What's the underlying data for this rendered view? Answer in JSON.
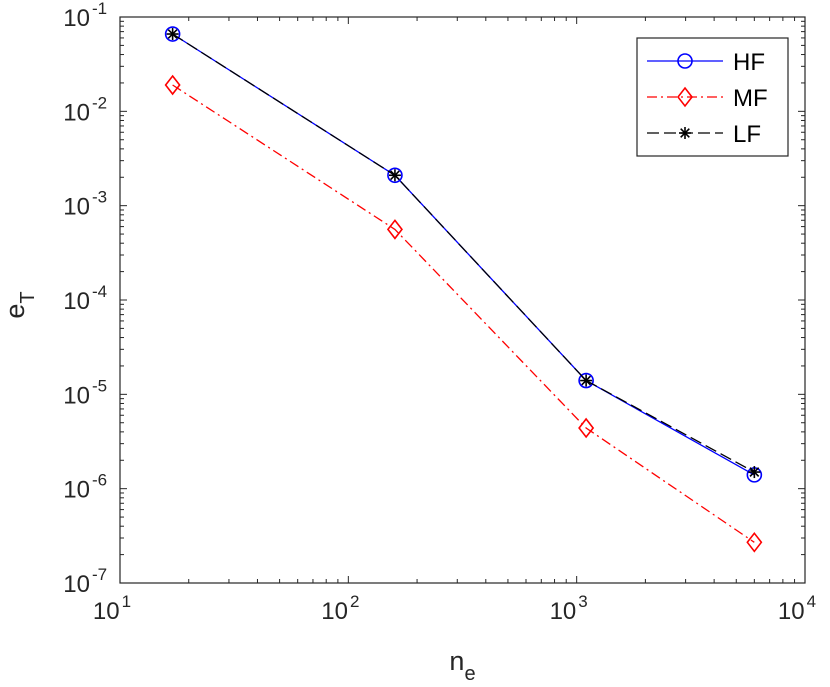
{
  "chart_data": {
    "type": "line",
    "xscale": "log",
    "yscale": "log",
    "xlim": [
      10,
      10000
    ],
    "ylim": [
      1e-07,
      0.1
    ],
    "x_ticks": [
      {
        "base": "10",
        "exp": "1",
        "value": 10
      },
      {
        "base": "10",
        "exp": "2",
        "value": 100
      },
      {
        "base": "10",
        "exp": "3",
        "value": 1000
      },
      {
        "base": "10",
        "exp": "4",
        "value": 10000
      }
    ],
    "y_ticks": [
      {
        "base": "10",
        "exp": "-1",
        "value": 0.1
      },
      {
        "base": "10",
        "exp": "-2",
        "value": 0.01
      },
      {
        "base": "10",
        "exp": "-3",
        "value": 0.001
      },
      {
        "base": "10",
        "exp": "-4",
        "value": 0.0001
      },
      {
        "base": "10",
        "exp": "-5",
        "value": 1e-05
      },
      {
        "base": "10",
        "exp": "-6",
        "value": 1e-06
      },
      {
        "base": "10",
        "exp": "-7",
        "value": 1e-07
      }
    ],
    "xlabel": {
      "main": "n",
      "sub": "e"
    },
    "ylabel": {
      "main": "e",
      "sub": "T"
    },
    "grid": false,
    "legend_position": "top-right",
    "series": [
      {
        "name": "HF",
        "color": "#0000ff",
        "marker": "circle",
        "line_style": "solid",
        "x": [
          17,
          160,
          1100,
          6000
        ],
        "y": [
          0.066,
          0.0021,
          1.4e-05,
          1.4e-06
        ]
      },
      {
        "name": "MF",
        "color": "#ff0000",
        "marker": "diamond",
        "line_style": "dash-dot",
        "x": [
          17,
          160,
          1100,
          6000
        ],
        "y": [
          0.019,
          0.00056,
          4.4e-06,
          2.7e-07
        ]
      },
      {
        "name": "LF",
        "color": "#000000",
        "marker": "asterisk",
        "line_style": "dashed",
        "x": [
          17,
          160,
          1100,
          6000
        ],
        "y": [
          0.066,
          0.0021,
          1.4e-05,
          1.5e-06
        ]
      }
    ]
  }
}
